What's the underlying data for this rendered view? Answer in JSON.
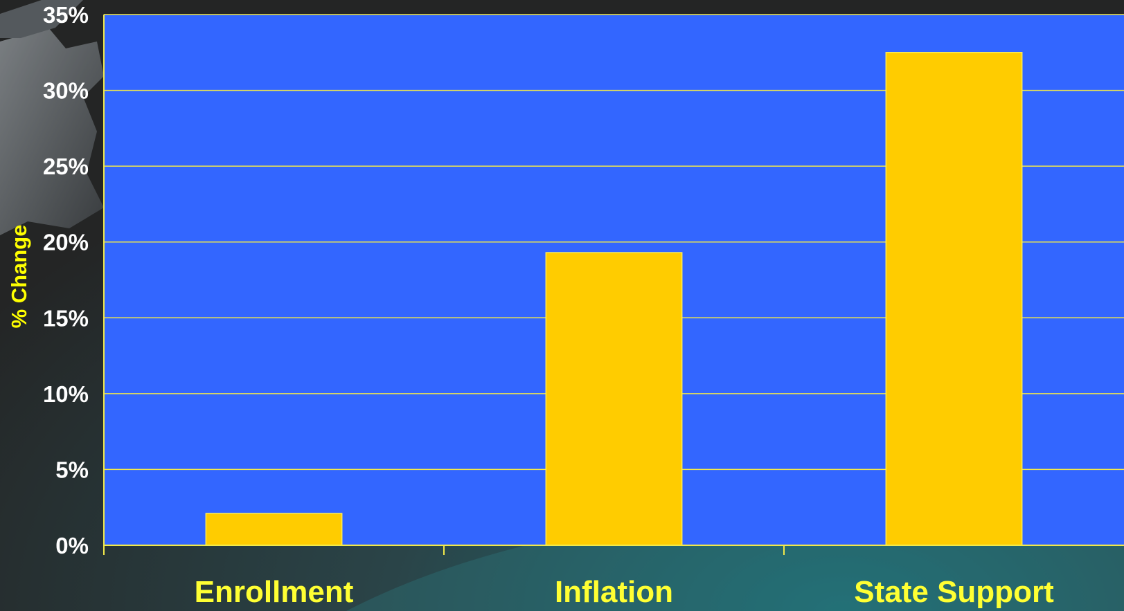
{
  "chart_data": {
    "type": "bar",
    "title": "",
    "xlabel": "",
    "ylabel": "% Change",
    "categories": [
      "Enrollment",
      "Inflation",
      "State Support"
    ],
    "values": [
      2.1,
      19.3,
      32.5
    ],
    "ylim": [
      0,
      35
    ],
    "y_ticks": [
      0,
      5,
      10,
      15,
      20,
      25,
      30,
      35
    ],
    "y_tick_labels": [
      "0%",
      "5%",
      "10%",
      "15%",
      "20%",
      "25%",
      "30%",
      "35%"
    ],
    "grid": true,
    "legend": "none"
  },
  "colors": {
    "plot_background": "#3366ff",
    "bar_fill": "#ffcc00",
    "bar_outline": "#ffee55",
    "gridline": "#f2e94a",
    "axis_line": "#f2e94a",
    "category_label": "#ffff33",
    "axis_title": "#ffff00",
    "tick_label": "#ffffff"
  }
}
